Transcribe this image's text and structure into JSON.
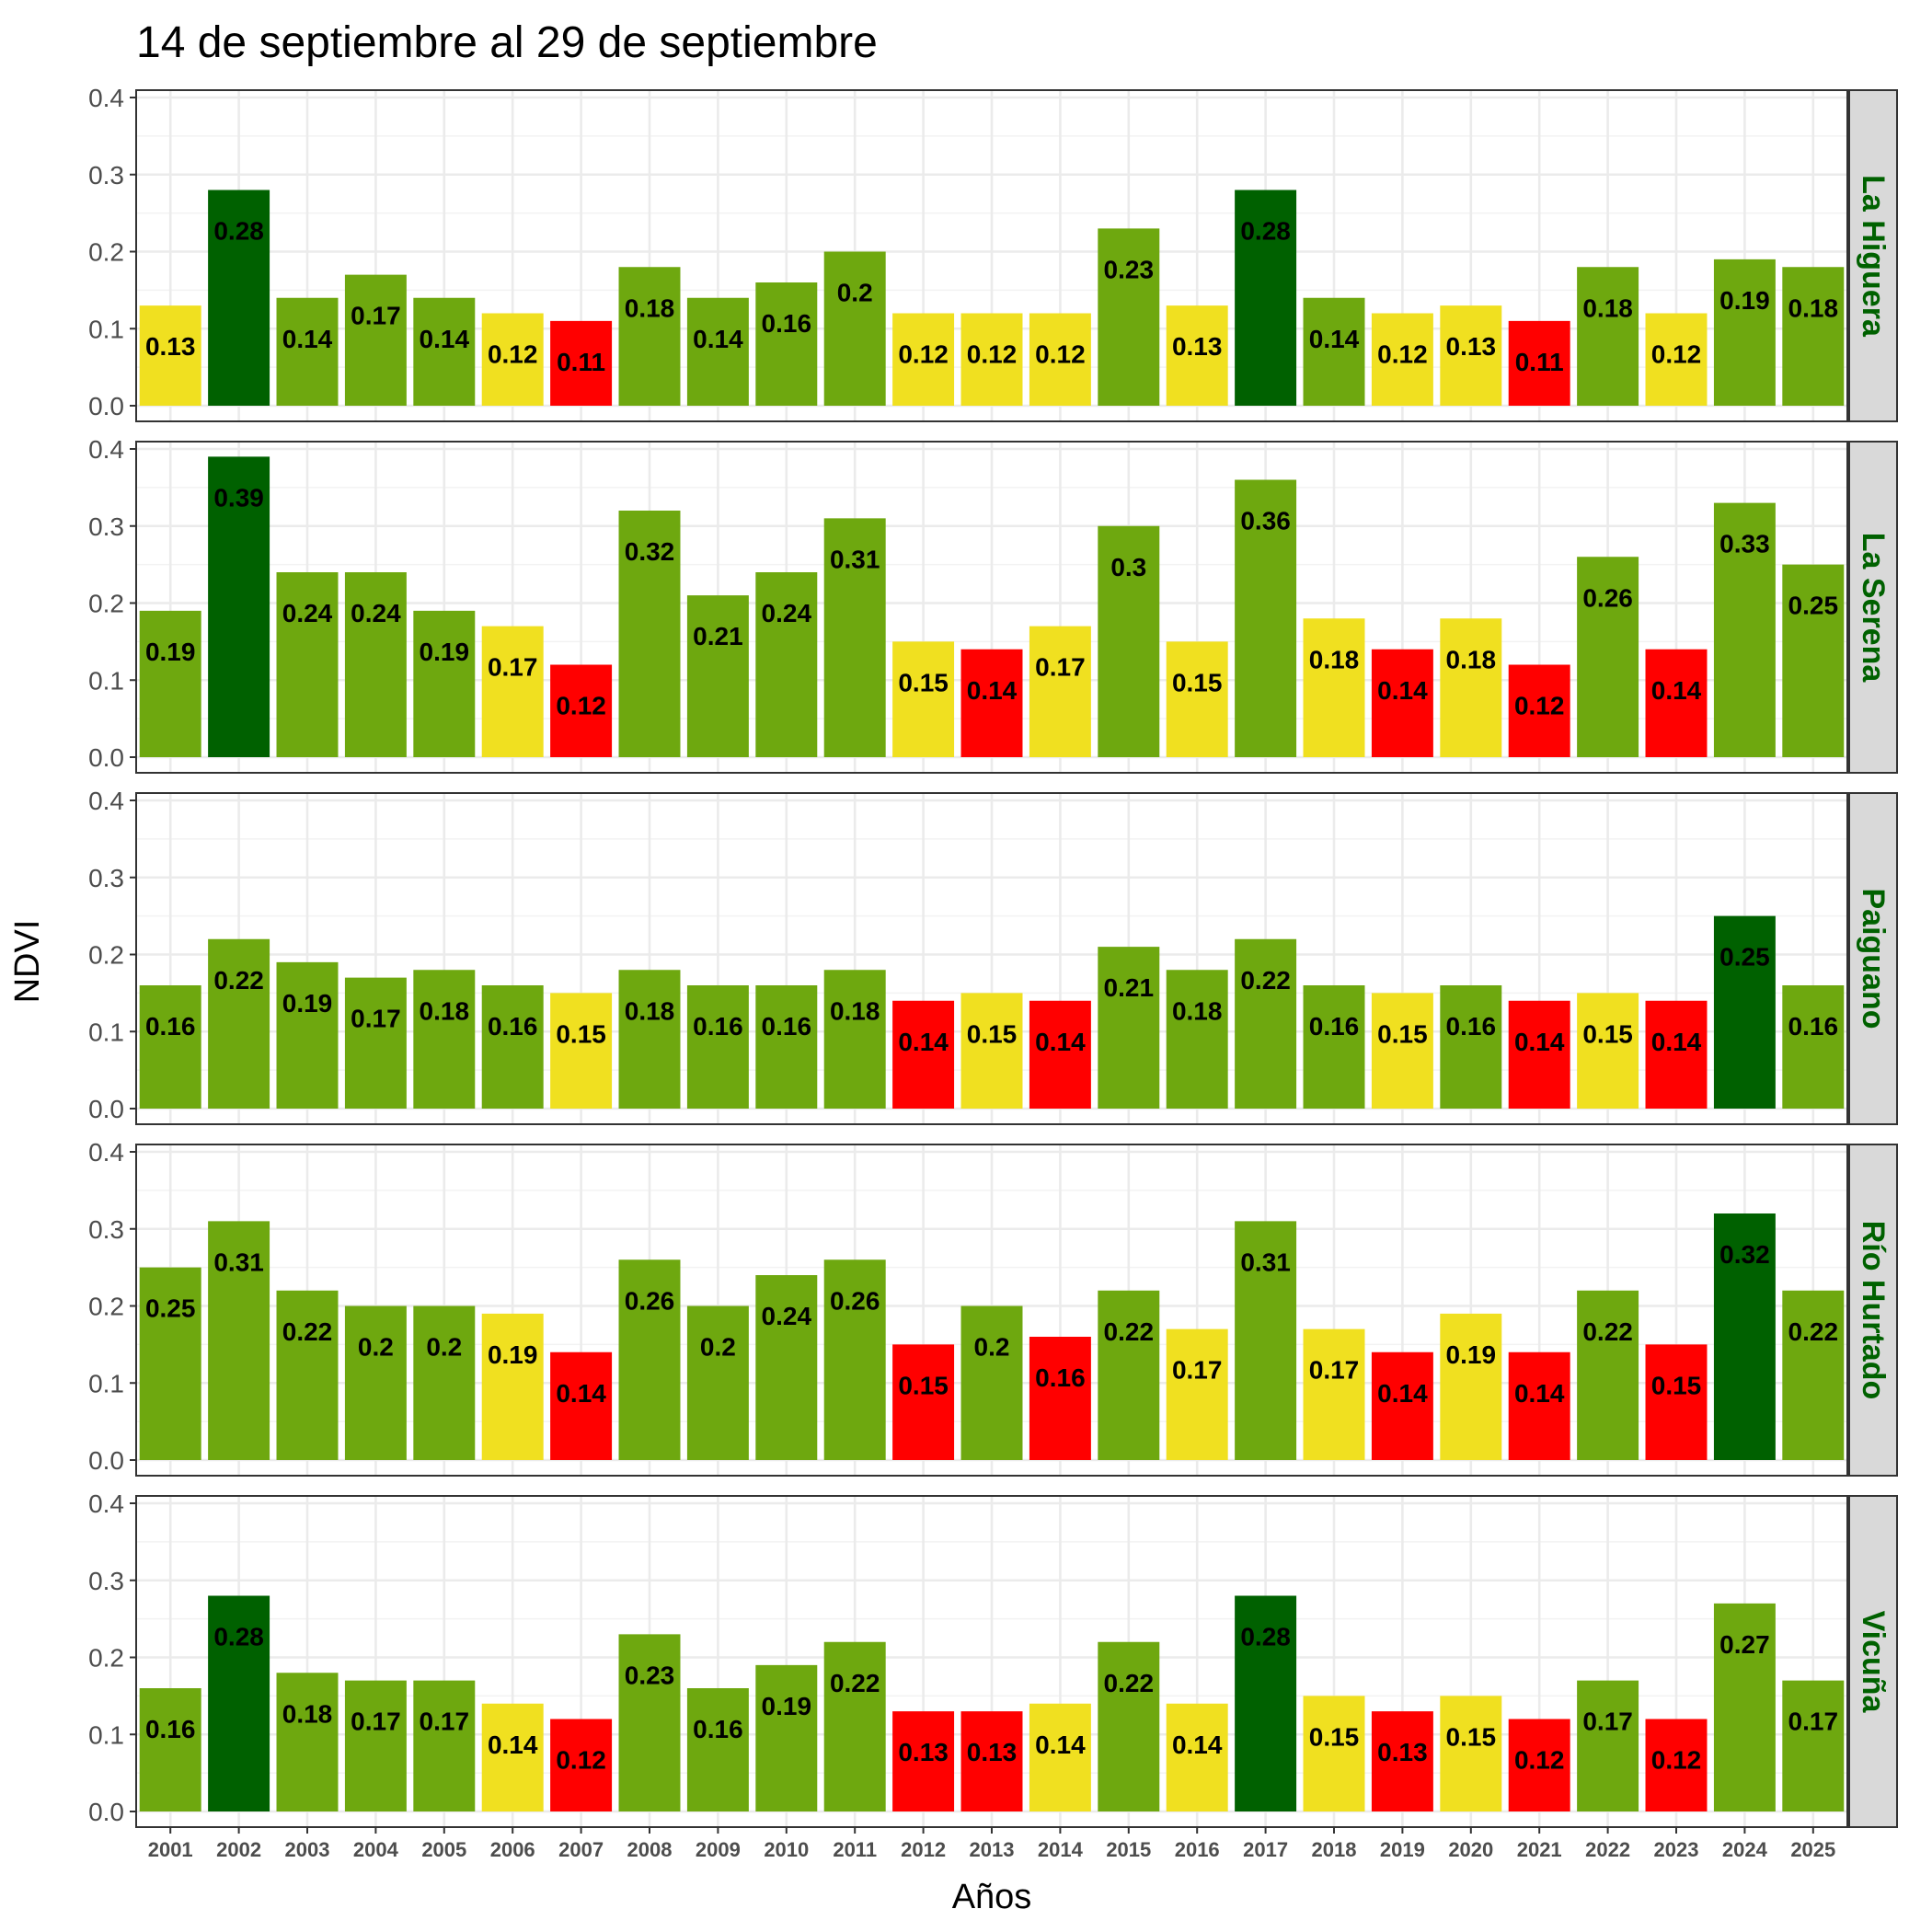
{
  "chart_data": {
    "type": "bar",
    "title": "14 de septiembre al 29 de septiembre",
    "xlabel": "Años",
    "ylabel": "NDVI",
    "ylim": [
      0,
      0.4
    ],
    "yticks": [
      "0.0",
      "0.1",
      "0.2",
      "0.3",
      "0.4"
    ],
    "grid": true,
    "categories": [
      "2001",
      "2002",
      "2003",
      "2004",
      "2005",
      "2006",
      "2007",
      "2008",
      "2009",
      "2010",
      "2011",
      "2012",
      "2013",
      "2014",
      "2015",
      "2016",
      "2017",
      "2018",
      "2019",
      "2020",
      "2021",
      "2022",
      "2023",
      "2024",
      "2025"
    ],
    "colors": {
      "high": "#006100",
      "normal": "#6ea80f",
      "low": "#f0e020",
      "very_low": "#ff0000",
      "strip_bg": "#d9d9d9",
      "strip_text": "#006100"
    },
    "panels": [
      {
        "name": "La Higuera",
        "values": [
          0.13,
          0.28,
          0.14,
          0.17,
          0.14,
          0.12,
          0.11,
          0.18,
          0.14,
          0.16,
          0.2,
          0.12,
          0.12,
          0.12,
          0.23,
          0.13,
          0.28,
          0.14,
          0.12,
          0.13,
          0.11,
          0.18,
          0.12,
          0.19,
          0.18
        ],
        "classes": [
          "low",
          "high",
          "normal",
          "normal",
          "normal",
          "low",
          "very_low",
          "normal",
          "normal",
          "normal",
          "normal",
          "low",
          "low",
          "low",
          "normal",
          "low",
          "high",
          "normal",
          "low",
          "low",
          "very_low",
          "normal",
          "low",
          "normal",
          "normal"
        ]
      },
      {
        "name": "La Serena",
        "values": [
          0.19,
          0.39,
          0.24,
          0.24,
          0.19,
          0.17,
          0.12,
          0.32,
          0.21,
          0.24,
          0.31,
          0.15,
          0.14,
          0.17,
          0.3,
          0.15,
          0.36,
          0.18,
          0.14,
          0.18,
          0.12,
          0.26,
          0.14,
          0.33,
          0.25
        ],
        "classes": [
          "normal",
          "high",
          "normal",
          "normal",
          "normal",
          "low",
          "very_low",
          "normal",
          "normal",
          "normal",
          "normal",
          "low",
          "very_low",
          "low",
          "normal",
          "low",
          "normal",
          "low",
          "very_low",
          "low",
          "very_low",
          "normal",
          "very_low",
          "normal",
          "normal"
        ]
      },
      {
        "name": "Paiguano",
        "values": [
          0.16,
          0.22,
          0.19,
          0.17,
          0.18,
          0.16,
          0.15,
          0.18,
          0.16,
          0.16,
          0.18,
          0.14,
          0.15,
          0.14,
          0.21,
          0.18,
          0.22,
          0.16,
          0.15,
          0.16,
          0.14,
          0.15,
          0.14,
          0.25,
          0.16
        ],
        "classes": [
          "normal",
          "normal",
          "normal",
          "normal",
          "normal",
          "normal",
          "low",
          "normal",
          "normal",
          "normal",
          "normal",
          "very_low",
          "low",
          "very_low",
          "normal",
          "normal",
          "normal",
          "normal",
          "low",
          "normal",
          "very_low",
          "low",
          "very_low",
          "high",
          "normal"
        ]
      },
      {
        "name": "Río Hurtado",
        "values": [
          0.25,
          0.31,
          0.22,
          0.2,
          0.2,
          0.19,
          0.14,
          0.26,
          0.2,
          0.24,
          0.26,
          0.15,
          0.2,
          0.16,
          0.22,
          0.17,
          0.31,
          0.17,
          0.14,
          0.19,
          0.14,
          0.22,
          0.15,
          0.32,
          0.22
        ],
        "classes": [
          "normal",
          "normal",
          "normal",
          "normal",
          "normal",
          "low",
          "very_low",
          "normal",
          "normal",
          "normal",
          "normal",
          "very_low",
          "normal",
          "very_low",
          "normal",
          "low",
          "normal",
          "low",
          "very_low",
          "low",
          "very_low",
          "normal",
          "very_low",
          "high",
          "normal"
        ]
      },
      {
        "name": "Vicuña",
        "values": [
          0.16,
          0.28,
          0.18,
          0.17,
          0.17,
          0.14,
          0.12,
          0.23,
          0.16,
          0.19,
          0.22,
          0.13,
          0.13,
          0.14,
          0.22,
          0.14,
          0.28,
          0.15,
          0.13,
          0.15,
          0.12,
          0.17,
          0.12,
          0.27,
          0.17
        ],
        "classes": [
          "normal",
          "high",
          "normal",
          "normal",
          "normal",
          "low",
          "very_low",
          "normal",
          "normal",
          "normal",
          "normal",
          "very_low",
          "very_low",
          "low",
          "normal",
          "low",
          "high",
          "low",
          "very_low",
          "low",
          "very_low",
          "normal",
          "very_low",
          "normal",
          "normal"
        ]
      }
    ]
  }
}
